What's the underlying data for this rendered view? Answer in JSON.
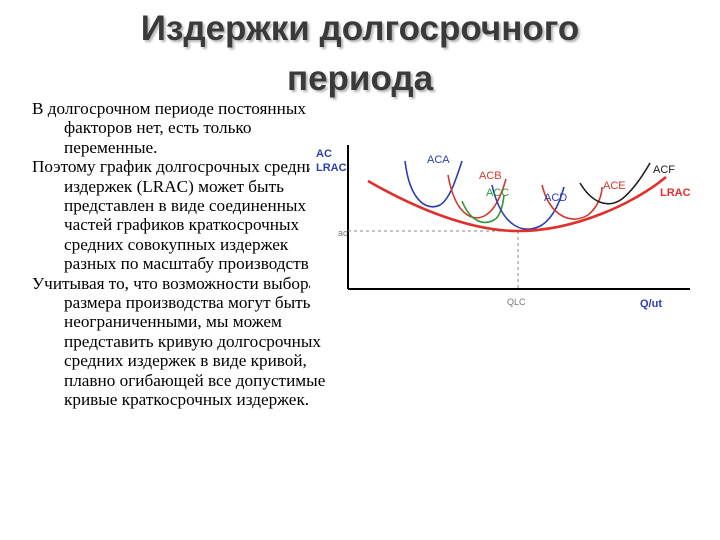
{
  "slide": {
    "title_line1": "Издержки долгосрочного",
    "title_line2": "периода",
    "paragraphs": [
      "В долгосрочном периоде постоянных факторов нет, есть только переменные.",
      "Поэтому график долгосрочных средних издержек (LRAC) может быть представлен в виде соединенных частей графиков краткосрочных средних совокупных издержек разных по масштабу производств.",
      "Учитывая то, что возможности выбора размера производства могут быть неограниченными, мы можем представить кривую долгосрочных средних издержек в виде кривой, плавно огибающей все допустимые кривые краткосрочных издержек."
    ]
  },
  "figure": {
    "y_axis_label_1": "AC",
    "y_axis_label_2": "LRAC",
    "x_axis_label": "Q/ut",
    "min_cost_label": "ac",
    "min_quantity_label": "QLC",
    "curves": [
      {
        "label": "ACA",
        "color": "#2a3fb0"
      },
      {
        "label": "ACB",
        "color": "#d23a2a"
      },
      {
        "label": "ACC",
        "color": "#2d9a3a"
      },
      {
        "label": "ACD",
        "color": "#2a3fb0"
      },
      {
        "label": "ACE",
        "color": "#d23a2a"
      },
      {
        "label": "ACF",
        "color": "#202020"
      }
    ],
    "lrac_label": "LRAC",
    "lrac_color": "#e0302a",
    "axis_color": "#000000"
  }
}
